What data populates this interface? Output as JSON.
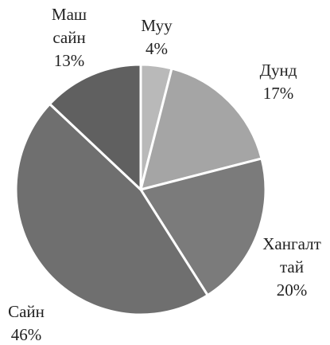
{
  "chart_data": {
    "type": "pie",
    "categories": [
      [
        "Муу"
      ],
      [
        "Дунд"
      ],
      [
        "Хангалт",
        "тай"
      ],
      [
        "Сайн"
      ],
      [
        "Маш",
        "сайн"
      ]
    ],
    "values": [
      4,
      17,
      20,
      46,
      13
    ],
    "value_labels": [
      "4%",
      "17%",
      "20%",
      "46%",
      "13%"
    ],
    "colors": [
      "#b9b9b9",
      "#a5a5a5",
      "#7b7b7b",
      "#6f6f6f",
      "#606060"
    ]
  }
}
